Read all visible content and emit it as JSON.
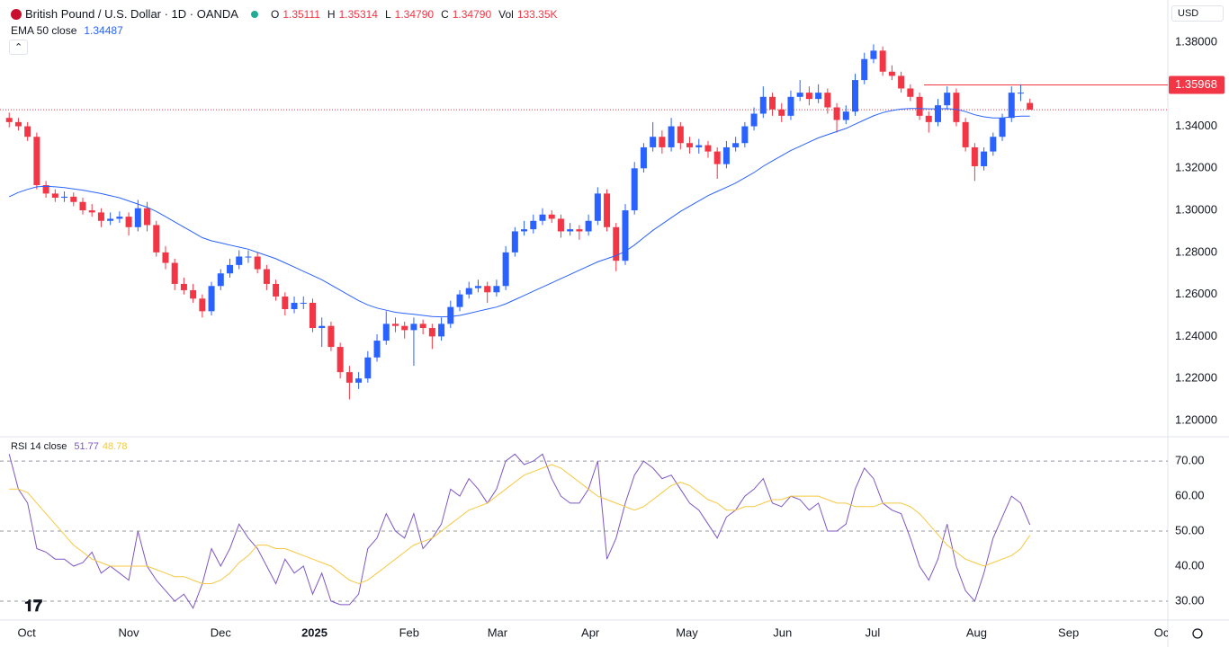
{
  "header": {
    "title": "British Pound / U.S. Dollar · 1D · OANDA",
    "ohlc_keys": [
      "O",
      "H",
      "L",
      "C"
    ],
    "ohlc_labels": [
      "1.35111",
      "1.35314",
      "1.34790",
      "1.34790"
    ],
    "vol_key": "Vol",
    "vol": "133.35K",
    "currency": "USD"
  },
  "chart_data": {
    "type": "candlestick",
    "up_color": "#2962ff",
    "down_color": "#f23645",
    "candles": [
      [
        1.344,
        1.3465,
        1.3395,
        1.342
      ],
      [
        1.342,
        1.344,
        1.338,
        1.34
      ],
      [
        1.34,
        1.342,
        1.333,
        1.335
      ],
      [
        1.335,
        1.337,
        1.31,
        1.312
      ],
      [
        1.312,
        1.314,
        1.306,
        1.308
      ],
      [
        1.308,
        1.31,
        1.304,
        1.306
      ],
      [
        1.306,
        1.309,
        1.304,
        1.3065
      ],
      [
        1.3065,
        1.3085,
        1.302,
        1.304
      ],
      [
        1.304,
        1.306,
        1.298,
        1.3
      ],
      [
        1.3,
        1.303,
        1.297,
        1.299
      ],
      [
        1.299,
        1.301,
        1.292,
        1.295
      ],
      [
        1.295,
        1.299,
        1.293,
        1.296
      ],
      [
        1.296,
        1.2995,
        1.294,
        1.297
      ],
      [
        1.297,
        1.299,
        1.288,
        1.292
      ],
      [
        1.292,
        1.305,
        1.29,
        1.301
      ],
      [
        1.301,
        1.304,
        1.29,
        1.293
      ],
      [
        1.293,
        1.295,
        1.278,
        1.28
      ],
      [
        1.28,
        1.283,
        1.272,
        1.275
      ],
      [
        1.275,
        1.277,
        1.262,
        1.265
      ],
      [
        1.265,
        1.268,
        1.26,
        1.262
      ],
      [
        1.262,
        1.265,
        1.256,
        1.258
      ],
      [
        1.258,
        1.26,
        1.249,
        1.252
      ],
      [
        1.252,
        1.266,
        1.25,
        1.264
      ],
      [
        1.264,
        1.272,
        1.262,
        1.27
      ],
      [
        1.27,
        1.277,
        1.268,
        1.274
      ],
      [
        1.274,
        1.281,
        1.272,
        1.278
      ],
      [
        1.278,
        1.281,
        1.275,
        1.278
      ],
      [
        1.278,
        1.28,
        1.27,
        1.272
      ],
      [
        1.272,
        1.274,
        1.262,
        1.265
      ],
      [
        1.265,
        1.267,
        1.257,
        1.259
      ],
      [
        1.259,
        1.261,
        1.25,
        1.253
      ],
      [
        1.253,
        1.259,
        1.251,
        1.256
      ],
      [
        1.256,
        1.259,
        1.253,
        1.256
      ],
      [
        1.256,
        1.258,
        1.242,
        1.244
      ],
      [
        1.244,
        1.249,
        1.235,
        1.245
      ],
      [
        1.245,
        1.247,
        1.233,
        1.235
      ],
      [
        1.235,
        1.237,
        1.22,
        1.223
      ],
      [
        1.223,
        1.226,
        1.21,
        1.218
      ],
      [
        1.218,
        1.223,
        1.215,
        1.22
      ],
      [
        1.22,
        1.233,
        1.218,
        1.23
      ],
      [
        1.23,
        1.241,
        1.228,
        1.238
      ],
      [
        1.238,
        1.252,
        1.236,
        1.246
      ],
      [
        1.246,
        1.249,
        1.242,
        1.245
      ],
      [
        1.245,
        1.247,
        1.239,
        1.243
      ],
      [
        1.243,
        1.249,
        1.226,
        1.246
      ],
      [
        1.246,
        1.248,
        1.241,
        1.244
      ],
      [
        1.244,
        1.246,
        1.234,
        1.24
      ],
      [
        1.24,
        1.249,
        1.238,
        1.246
      ],
      [
        1.246,
        1.257,
        1.244,
        1.254
      ],
      [
        1.254,
        1.262,
        1.252,
        1.26
      ],
      [
        1.26,
        1.266,
        1.258,
        1.263
      ],
      [
        1.263,
        1.267,
        1.261,
        1.264
      ],
      [
        1.264,
        1.266,
        1.256,
        1.261
      ],
      [
        1.261,
        1.267,
        1.259,
        1.264
      ],
      [
        1.264,
        1.283,
        1.262,
        1.28
      ],
      [
        1.28,
        1.292,
        1.278,
        1.29
      ],
      [
        1.29,
        1.295,
        1.288,
        1.291
      ],
      [
        1.291,
        1.298,
        1.289,
        1.295
      ],
      [
        1.295,
        1.301,
        1.293,
        1.298
      ],
      [
        1.298,
        1.3,
        1.294,
        1.296
      ],
      [
        1.296,
        1.298,
        1.287,
        1.29
      ],
      [
        1.29,
        1.294,
        1.288,
        1.291
      ],
      [
        1.291,
        1.293,
        1.286,
        1.29
      ],
      [
        1.29,
        1.298,
        1.288,
        1.295
      ],
      [
        1.295,
        1.311,
        1.293,
        1.308
      ],
      [
        1.308,
        1.31,
        1.29,
        1.292
      ],
      [
        1.292,
        1.294,
        1.271,
        1.276
      ],
      [
        1.276,
        1.303,
        1.274,
        1.3
      ],
      [
        1.3,
        1.323,
        1.298,
        1.32
      ],
      [
        1.32,
        1.332,
        1.318,
        1.33
      ],
      [
        1.33,
        1.342,
        1.328,
        1.335
      ],
      [
        1.335,
        1.338,
        1.327,
        1.33
      ],
      [
        1.33,
        1.344,
        1.328,
        1.34
      ],
      [
        1.34,
        1.342,
        1.329,
        1.332
      ],
      [
        1.332,
        1.335,
        1.327,
        1.33
      ],
      [
        1.33,
        1.334,
        1.327,
        1.331
      ],
      [
        1.331,
        1.333,
        1.325,
        1.328
      ],
      [
        1.328,
        1.33,
        1.315,
        1.322
      ],
      [
        1.322,
        1.333,
        1.32,
        1.33
      ],
      [
        1.33,
        1.335,
        1.328,
        1.332
      ],
      [
        1.332,
        1.342,
        1.33,
        1.34
      ],
      [
        1.34,
        1.349,
        1.338,
        1.346
      ],
      [
        1.346,
        1.359,
        1.344,
        1.354
      ],
      [
        1.354,
        1.356,
        1.345,
        1.348
      ],
      [
        1.348,
        1.351,
        1.342,
        1.345
      ],
      [
        1.345,
        1.357,
        1.343,
        1.354
      ],
      [
        1.354,
        1.362,
        1.352,
        1.356
      ],
      [
        1.356,
        1.359,
        1.35,
        1.353
      ],
      [
        1.353,
        1.36,
        1.351,
        1.356
      ],
      [
        1.356,
        1.358,
        1.346,
        1.349
      ],
      [
        1.349,
        1.351,
        1.337,
        1.343
      ],
      [
        1.343,
        1.35,
        1.341,
        1.347
      ],
      [
        1.347,
        1.365,
        1.345,
        1.362
      ],
      [
        1.362,
        1.375,
        1.36,
        1.372
      ],
      [
        1.372,
        1.379,
        1.37,
        1.376
      ],
      [
        1.376,
        1.378,
        1.364,
        1.366
      ],
      [
        1.366,
        1.369,
        1.362,
        1.364
      ],
      [
        1.364,
        1.366,
        1.356,
        1.358
      ],
      [
        1.358,
        1.36,
        1.352,
        1.354
      ],
      [
        1.354,
        1.356,
        1.343,
        1.345
      ],
      [
        1.345,
        1.347,
        1.337,
        1.342
      ],
      [
        1.342,
        1.353,
        1.34,
        1.35
      ],
      [
        1.35,
        1.359,
        1.348,
        1.356
      ],
      [
        1.356,
        1.358,
        1.34,
        1.342
      ],
      [
        1.342,
        1.344,
        1.328,
        1.33
      ],
      [
        1.33,
        1.332,
        1.314,
        1.321
      ],
      [
        1.321,
        1.33,
        1.319,
        1.328
      ],
      [
        1.328,
        1.337,
        1.326,
        1.335
      ],
      [
        1.335,
        1.346,
        1.333,
        1.344
      ],
      [
        1.344,
        1.359,
        1.342,
        1.356
      ],
      [
        1.356,
        1.3597,
        1.352,
        1.356
      ],
      [
        1.35111,
        1.35314,
        1.3479,
        1.3479
      ]
    ],
    "xlim": [
      -1,
      126
    ],
    "xticks": [
      {
        "value": 1.9,
        "label": "Oct"
      },
      {
        "value": 13,
        "label": "Nov"
      },
      {
        "value": 23,
        "label": "Dec"
      },
      {
        "value": 33.2,
        "label": "2025"
      },
      {
        "value": 43.5,
        "label": "Feb"
      },
      {
        "value": 53.1,
        "label": "Mar"
      },
      {
        "value": 63.2,
        "label": "Apr"
      },
      {
        "value": 73.7,
        "label": "May"
      },
      {
        "value": 84.1,
        "label": "Jun"
      },
      {
        "value": 93.9,
        "label": "Jul"
      },
      {
        "value": 105.2,
        "label": "Aug"
      },
      {
        "value": 115.2,
        "label": "Sep"
      },
      {
        "value": 125.5,
        "label": "Oct"
      }
    ],
    "ylim": [
      1.1927,
      1.4001
    ],
    "yticks": [
      {
        "value": 1.2,
        "label": "1.20000"
      },
      {
        "value": 1.22,
        "label": "1.22000"
      },
      {
        "value": 1.24,
        "label": "1.24000"
      },
      {
        "value": 1.26,
        "label": "1.26000"
      },
      {
        "value": 1.28,
        "label": "1.28000"
      },
      {
        "value": 1.3,
        "label": "1.30000"
      },
      {
        "value": 1.32,
        "label": "1.32000"
      },
      {
        "value": 1.34,
        "label": "1.34000"
      },
      {
        "value": 1.36,
        "label": "1.36000"
      },
      {
        "value": 1.38,
        "label": "1.38000"
      }
    ],
    "grid": false,
    "hline": {
      "value": 1.35968,
      "label": "1.35968",
      "color": "#f23645"
    },
    "ema": {
      "name": "EMA 50 close",
      "color": "#2962ff",
      "values": [
        1.3065,
        1.3085,
        1.31,
        1.3112,
        1.3115,
        1.3112,
        1.3108,
        1.3102,
        1.3096,
        1.3088,
        1.308,
        1.307,
        1.306,
        1.3045,
        1.303,
        1.3015,
        1.2995,
        1.297,
        1.2945,
        1.292,
        1.2895,
        1.287,
        1.2855,
        1.2845,
        1.2835,
        1.2825,
        1.2815,
        1.28,
        1.2785,
        1.277,
        1.275,
        1.273,
        1.271,
        1.269,
        1.267,
        1.2645,
        1.262,
        1.2595,
        1.257,
        1.255,
        1.2535,
        1.2525,
        1.2515,
        1.251,
        1.2505,
        1.25,
        1.2495,
        1.2493,
        1.2495,
        1.25,
        1.251,
        1.252,
        1.253,
        1.254,
        1.2555,
        1.2575,
        1.2595,
        1.2615,
        1.2635,
        1.2655,
        1.2675,
        1.2695,
        1.2715,
        1.2735,
        1.2755,
        1.277,
        1.2785,
        1.2805,
        1.2835,
        1.287,
        1.2905,
        1.2935,
        1.2965,
        1.2995,
        1.302,
        1.3045,
        1.307,
        1.309,
        1.311,
        1.313,
        1.3155,
        1.318,
        1.321,
        1.3235,
        1.326,
        1.3285,
        1.3305,
        1.3325,
        1.3345,
        1.336,
        1.3375,
        1.339,
        1.341,
        1.343,
        1.345,
        1.3465,
        1.3475,
        1.3482,
        1.3485,
        1.3485,
        1.3483,
        1.3483,
        1.3484,
        1.348,
        1.347,
        1.3455,
        1.3445,
        1.344,
        1.344,
        1.3445,
        1.3448,
        1.34487
      ]
    },
    "rsi": {
      "name": "RSI 14 close",
      "ylim": [
        24.6,
        76.7
      ],
      "yticks": [
        {
          "value": 30,
          "label": "30.00"
        },
        {
          "value": 40,
          "label": "40.00"
        },
        {
          "value": 50,
          "label": "50.00"
        },
        {
          "value": 60,
          "label": "60.00"
        },
        {
          "value": 70,
          "label": "70.00"
        }
      ],
      "bands": [
        70,
        50,
        30
      ],
      "series": [
        {
          "color": "#7e57c2",
          "values": [
            72,
            62,
            58,
            45,
            44,
            42,
            42,
            40,
            41,
            44,
            38,
            40,
            38,
            36,
            50,
            40,
            36,
            33,
            30,
            32,
            28,
            35,
            45,
            40,
            45,
            52,
            48,
            45,
            40,
            35,
            42,
            38,
            40,
            32,
            38,
            30,
            29,
            29,
            32,
            45,
            48,
            55,
            50,
            48,
            55,
            45,
            48,
            52,
            62,
            60,
            65,
            62,
            58,
            62,
            70,
            72,
            69,
            70,
            72,
            65,
            60,
            58,
            58,
            62,
            70,
            42,
            48,
            58,
            66,
            70,
            68,
            65,
            66,
            62,
            58,
            56,
            52,
            48,
            54,
            56,
            60,
            62,
            65,
            58,
            57,
            60,
            59,
            56,
            58,
            50,
            50,
            52,
            62,
            68,
            65,
            58,
            56,
            55,
            48,
            40,
            36,
            42,
            52,
            40,
            33,
            30,
            38,
            48,
            54,
            60,
            58,
            51.77
          ]
        },
        {
          "color": "#f5c842",
          "values": [
            62,
            62,
            61,
            58,
            55,
            52,
            49,
            46,
            44,
            42,
            41,
            40,
            40,
            40,
            40,
            40,
            39,
            38,
            37,
            37,
            36,
            35,
            35,
            36,
            38,
            41,
            43,
            46,
            46,
            45,
            45,
            44,
            43,
            42,
            41,
            40,
            38,
            36,
            35,
            36,
            38,
            40,
            42,
            44,
            46,
            47,
            48,
            50,
            52,
            54,
            56,
            57,
            58,
            60,
            62,
            64,
            66,
            67,
            68,
            69,
            68,
            66,
            64,
            62,
            60,
            59,
            58,
            57,
            56,
            57,
            59,
            61,
            63,
            64,
            63,
            61,
            59,
            58,
            56,
            56,
            57,
            57,
            58,
            59,
            59,
            60,
            60,
            60,
            60,
            59,
            58,
            58,
            57,
            57,
            57,
            58,
            58,
            58,
            57,
            55,
            52,
            49,
            46,
            44,
            42,
            41,
            40,
            41,
            42,
            43,
            45,
            48.78
          ]
        }
      ]
    }
  }
}
